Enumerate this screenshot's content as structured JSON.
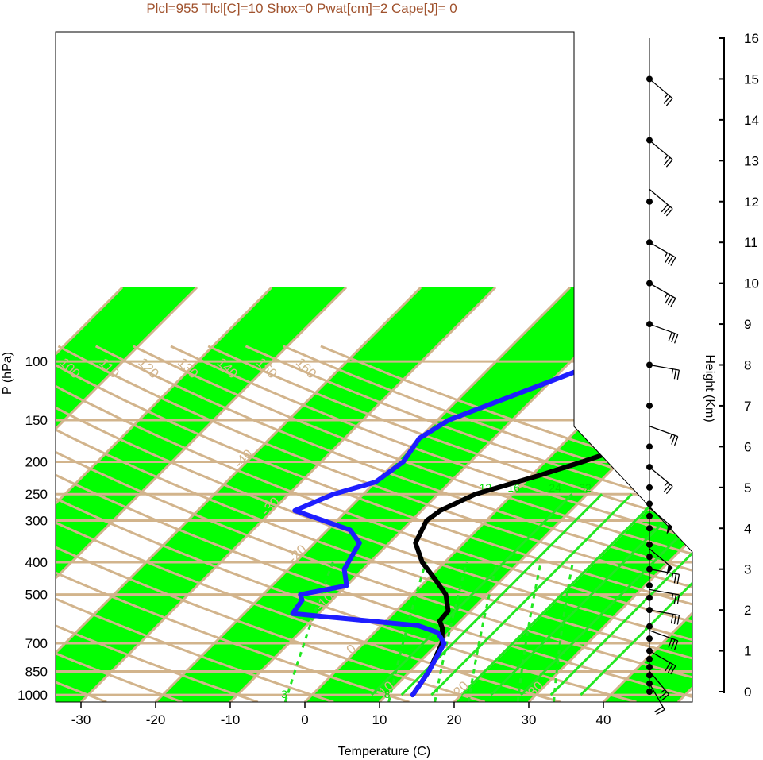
{
  "chart_data": {
    "type": "line",
    "title": "Plcl=955 Tlcl[C]=10 Shox=0 Pwat[cm]=2 Cape[J]= 0",
    "xlabel": "Temperature (C)",
    "ylabel": "P (hPa)",
    "y2label": "Height (Km)",
    "xlim": [
      -34,
      37
    ],
    "ylim": [
      1050,
      100
    ],
    "x_ticks": [
      -30,
      -20,
      -10,
      0,
      10,
      20,
      30,
      40
    ],
    "p_ticks": [
      100,
      150,
      200,
      250,
      300,
      400,
      500,
      700,
      850,
      1000
    ],
    "height_ticks": [
      0,
      1,
      2,
      3,
      4,
      5,
      6,
      7,
      8,
      9,
      10,
      11,
      12,
      13,
      14,
      15,
      16
    ],
    "isotherm_labels": [
      -40,
      -30,
      -20,
      -10,
      0,
      10,
      20,
      30
    ],
    "dry_adiabat_labels": [
      50,
      60,
      70,
      80,
      90,
      100,
      110,
      120,
      130,
      140,
      150,
      160
    ],
    "mixing_ratio_labels": [
      3,
      8,
      12,
      16,
      24,
      32
    ],
    "colors": {
      "temperature": "#000000",
      "dewpoint": "#1e1eff",
      "bands": "#00ff00",
      "guides": "#d2b48c",
      "title": "#a0522d",
      "mixing": "#22e822"
    },
    "series": [
      {
        "name": "Temperature",
        "color": "#000000",
        "points": [
          [
            1000,
            13.5
          ],
          [
            950,
            13.2
          ],
          [
            850,
            12.5
          ],
          [
            700,
            10.5
          ],
          [
            630,
            8.5
          ],
          [
            600,
            7.2
          ],
          [
            560,
            7.0
          ],
          [
            500,
            4.5
          ],
          [
            450,
            1.0
          ],
          [
            400,
            -3.0
          ],
          [
            350,
            -6.5
          ],
          [
            300,
            -8.0
          ],
          [
            280,
            -7.5
          ],
          [
            250,
            -5.0
          ],
          [
            220,
            1.0
          ],
          [
            200,
            5.0
          ],
          [
            180,
            9.0
          ],
          [
            170,
            10.0
          ],
          [
            150,
            11.8
          ],
          [
            130,
            13.5
          ],
          [
            110,
            15.5
          ],
          [
            104,
            17.0
          ]
        ]
      },
      {
        "name": "Dew point",
        "color": "#1e1eff",
        "points": [
          [
            1000,
            13.5
          ],
          [
            950,
            13.2
          ],
          [
            850,
            12.5
          ],
          [
            700,
            10.8
          ],
          [
            650,
            8.5
          ],
          [
            620,
            5.0
          ],
          [
            570,
            -13.5
          ],
          [
            520,
            -14.0
          ],
          [
            500,
            -15.0
          ],
          [
            470,
            -10.0
          ],
          [
            420,
            -12.5
          ],
          [
            350,
            -14.0
          ],
          [
            320,
            -17.0
          ],
          [
            280,
            -27.0
          ],
          [
            250,
            -24.0
          ],
          [
            230,
            -20.0
          ],
          [
            200,
            -19.0
          ],
          [
            170,
            -20.0
          ],
          [
            150,
            -18.5
          ],
          [
            104,
            -7.0
          ]
        ]
      }
    ],
    "wind_levels_km": [
      0.0,
      0.2,
      0.4,
      0.6,
      0.8,
      1.0,
      1.3,
      1.6,
      2.0,
      2.3,
      2.6,
      3.0,
      3.3,
      3.6,
      4.0,
      4.3,
      4.6,
      5.0,
      5.5,
      6.0,
      7.0,
      8.0,
      9.0,
      10.0,
      11.0,
      12.0,
      13.5,
      15.0
    ],
    "wind_barbs": [
      {
        "h": 0.2,
        "dir": 210,
        "full": 2,
        "half": 0
      },
      {
        "h": 0.5,
        "dir": 220,
        "full": 2,
        "half": 1
      },
      {
        "h": 1.0,
        "dir": 240,
        "full": 3,
        "half": 0
      },
      {
        "h": 1.5,
        "dir": 250,
        "full": 3,
        "half": 0
      },
      {
        "h": 2.0,
        "dir": 260,
        "full": 3,
        "half": 0
      },
      {
        "h": 2.5,
        "dir": 260,
        "full": 2,
        "half": 1
      },
      {
        "h": 3.0,
        "dir": 260,
        "full": 2,
        "half": 1
      },
      {
        "h": 3.5,
        "dir": 230,
        "pennant": 1
      },
      {
        "h": 4.5,
        "dir": 230,
        "pennant": 1
      },
      {
        "h": 5.5,
        "dir": 230,
        "full": 2,
        "half": 1
      },
      {
        "h": 6.5,
        "dir": 250,
        "full": 2,
        "half": 1
      },
      {
        "h": 8.0,
        "dir": 260,
        "full": 2,
        "half": 1
      },
      {
        "h": 9.0,
        "dir": 250,
        "full": 3,
        "half": 0
      },
      {
        "h": 10.0,
        "dir": 240,
        "full": 3,
        "half": 1
      },
      {
        "h": 11.0,
        "dir": 240,
        "full": 3,
        "half": 1
      },
      {
        "h": 12.3,
        "dir": 230,
        "full": 3,
        "half": 0
      },
      {
        "h": 13.5,
        "dir": 230,
        "full": 2,
        "half": 1
      },
      {
        "h": 15.0,
        "dir": 230,
        "full": 2,
        "half": 1
      }
    ]
  }
}
